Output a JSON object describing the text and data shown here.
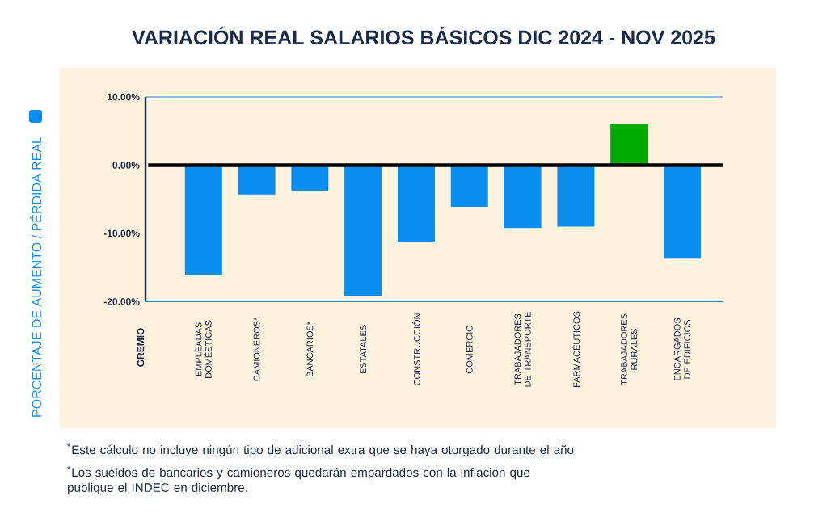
{
  "chart_data": {
    "type": "bar",
    "title": "VARIACIÓN REAL SALARIOS BÁSICOS DIC 2024 -  NOV 2025",
    "categories": [
      "EMPLEADAS DOMÉSTICAS",
      "CAMIONEROS*",
      "BANCARIOS*",
      "ESTATALES",
      "CONSTRUCCIÓN",
      "COMERCIO",
      "TRABAJADORES DE TRANSPORTE",
      "FARMACÉUTICOS",
      "TRABAJADORES RURALES",
      "ENCARGADOS DE EDIFICIOS"
    ],
    "series": [
      {
        "name": "PORCENTAJE DE AUMENTO / PÉRDIDA REAL",
        "color": "#0a8ff0",
        "values": [
          -16.1,
          -4.3,
          -3.8,
          -19.2,
          -11.3,
          -6.1,
          -9.2,
          -9.0,
          6.0,
          -13.7
        ],
        "colors": [
          "#0a8ff0",
          "#0a8ff0",
          "#0a8ff0",
          "#0a8ff0",
          "#0a8ff0",
          "#0a8ff0",
          "#0a8ff0",
          "#0a8ff0",
          "#00aa00",
          "#0a8ff0"
        ]
      }
    ],
    "ylim": [
      -20,
      10
    ],
    "yticks": [
      {
        "value": -20,
        "label": "-20.00%"
      },
      {
        "value": -10,
        "label": "-10.00%"
      },
      {
        "value": 0,
        "label": "0.00%"
      },
      {
        "value": 10,
        "label": "10.00%"
      }
    ],
    "ref_lines": [
      {
        "axis": "y",
        "value": 0,
        "color": "#000000"
      }
    ],
    "legend": "left",
    "annotations": [
      "GREMIO",
      "$^{*}$Este cálculo no incluye ningún tipo de adicional extra que se haya otorgado durante el año",
      "$^{*}$Los sueldos de bancarios y camioneros quedarán empardados con la inflación que publique el INDEC en diciembre."
    ]
  }
}
